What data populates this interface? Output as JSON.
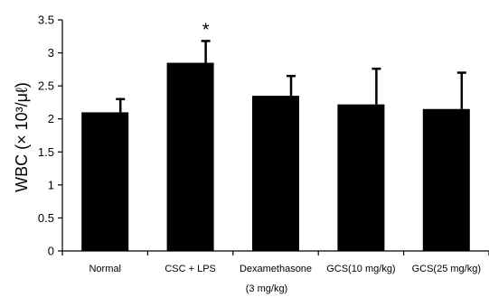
{
  "chart_data": {
    "type": "bar",
    "categories": [
      "Normal",
      "CSC + LPS",
      "Dexamethasone",
      "GCS(10 mg/kg)",
      "GCS(25 mg/kg)"
    ],
    "category_sublabels": [
      "",
      "",
      "(3 mg/kg)",
      "",
      ""
    ],
    "values": [
      2.1,
      2.85,
      2.35,
      2.22,
      2.15
    ],
    "error_plus": [
      0.2,
      0.33,
      0.3,
      0.54,
      0.55
    ],
    "annotations": [
      "",
      "*",
      "",
      "",
      ""
    ],
    "ylabel": "WBC (× 10³/μℓ)",
    "ylim": [
      0,
      3.5
    ],
    "yticks": [
      "0",
      "0.5",
      "1",
      "1.5",
      "2",
      "2.5",
      "3",
      "3.5"
    ],
    "grid": false,
    "bar_color": "#000000"
  }
}
